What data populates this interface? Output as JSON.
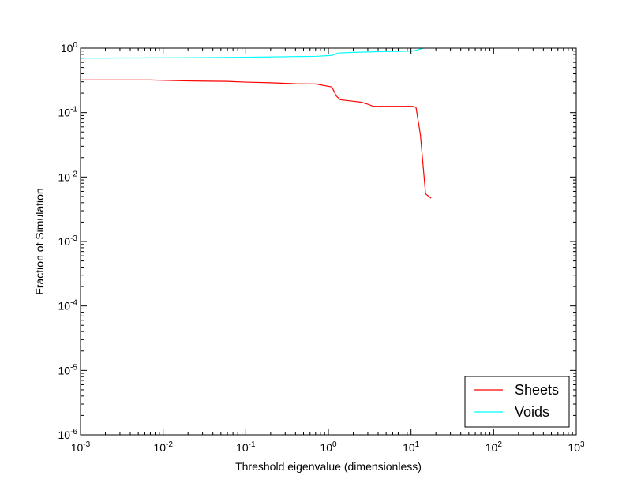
{
  "chart_data": {
    "type": "line",
    "xlabel": "Threshold eigenvalue (dimensionless)",
    "ylabel": "Fraction of Simulation",
    "xscale": "log",
    "yscale": "log",
    "xlim": [
      0.001,
      1000
    ],
    "ylim": [
      1e-06,
      1
    ],
    "grid": false,
    "legend_position": "lower-right",
    "x_ticks": [
      {
        "base": "10",
        "exp": "-3",
        "value": 0.001
      },
      {
        "base": "10",
        "exp": "-2",
        "value": 0.01
      },
      {
        "base": "10",
        "exp": "-1",
        "value": 0.1
      },
      {
        "base": "10",
        "exp": "0",
        "value": 1
      },
      {
        "base": "10",
        "exp": "1",
        "value": 10
      },
      {
        "base": "10",
        "exp": "2",
        "value": 100
      },
      {
        "base": "10",
        "exp": "3",
        "value": 1000
      }
    ],
    "y_ticks": [
      {
        "base": "10",
        "exp": "-6",
        "value": 1e-06
      },
      {
        "base": "10",
        "exp": "-5",
        "value": 1e-05
      },
      {
        "base": "10",
        "exp": "-4",
        "value": 0.0001
      },
      {
        "base": "10",
        "exp": "-3",
        "value": 0.001
      },
      {
        "base": "10",
        "exp": "-2",
        "value": 0.01
      },
      {
        "base": "10",
        "exp": "-1",
        "value": 0.1
      },
      {
        "base": "10",
        "exp": "0",
        "value": 1
      }
    ],
    "series": [
      {
        "name": "Sheets",
        "color": "#ff0000",
        "x": [
          0.001,
          0.007,
          0.02,
          0.06,
          0.1,
          0.2,
          0.4,
          0.7,
          1.1,
          1.25,
          1.4,
          2.0,
          2.5,
          3.0,
          3.5,
          5.0,
          8.0,
          10.5,
          11.5,
          13.0,
          15.0,
          17.5
        ],
        "y": [
          0.32,
          0.32,
          0.31,
          0.305,
          0.297,
          0.29,
          0.28,
          0.278,
          0.25,
          0.18,
          0.158,
          0.15,
          0.145,
          0.135,
          0.125,
          0.125,
          0.125,
          0.125,
          0.12,
          0.045,
          0.0055,
          0.0047
        ]
      },
      {
        "name": "Voids",
        "color": "#00ffff",
        "x": [
          0.001,
          0.01,
          0.1,
          0.4,
          0.7,
          1.1,
          1.3,
          2.0,
          4.0,
          10.5,
          12.0,
          14.0
        ],
        "y": [
          0.7,
          0.705,
          0.72,
          0.74,
          0.745,
          0.77,
          0.84,
          0.86,
          0.88,
          0.9,
          0.94,
          1.0
        ]
      }
    ]
  }
}
